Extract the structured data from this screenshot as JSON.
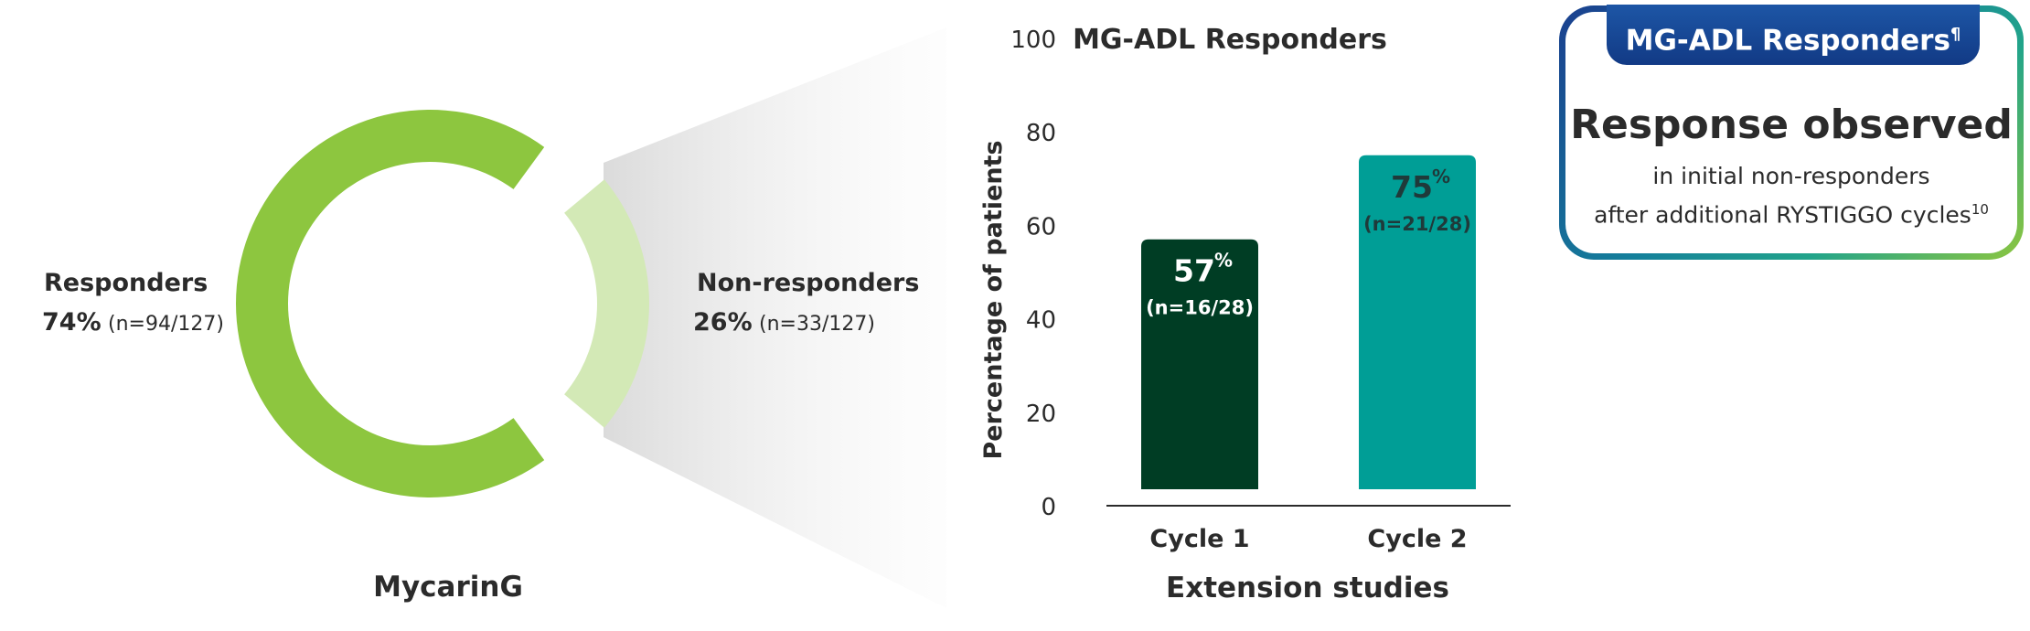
{
  "donut": {
    "title": "MycarinG",
    "responders": {
      "label": "Responders",
      "percent": "74%",
      "count": "(n=94/127)",
      "value": 74,
      "color": "#8dc63f"
    },
    "non_responders": {
      "label": "Non-responders",
      "percent": "26%",
      "count": "(n=33/127)",
      "value": 26,
      "color": "#d3e9b6"
    }
  },
  "chart_data": {
    "type": "bar",
    "title": "MG-ADL Responders",
    "xlabel": "Extension studies",
    "ylabel": "Percentage of patients",
    "ylim": [
      0,
      100
    ],
    "yticks": [
      0,
      20,
      40,
      60,
      80,
      100
    ],
    "categories": [
      "Cycle 1",
      "Cycle 2"
    ],
    "values": [
      57,
      75
    ],
    "value_labels": [
      "57",
      "75"
    ],
    "value_unit": "%",
    "n_labels": [
      "(n=16/28)",
      "(n=21/28)"
    ],
    "colors": [
      "#003d24",
      "#009e96"
    ]
  },
  "callout": {
    "tab_label": "MG-ADL Responders",
    "tab_footnote": "¶",
    "headline": "Response observed",
    "line1": "in initial non-responders",
    "line2": "after additional RYSTIGGO cycles",
    "line2_footnote": "10"
  }
}
